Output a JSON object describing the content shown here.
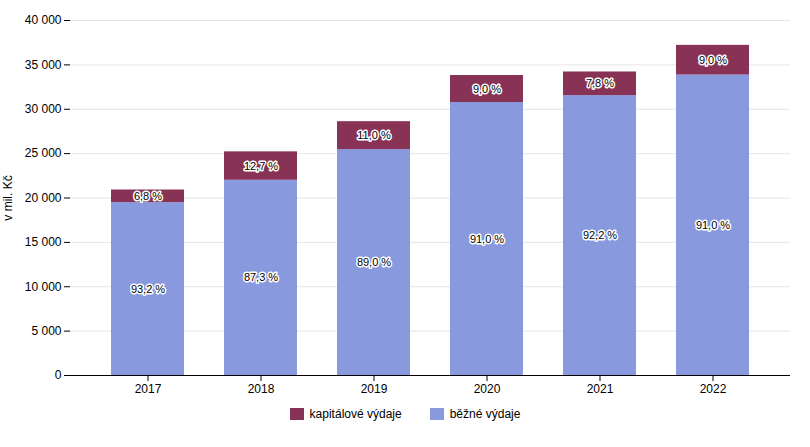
{
  "chart_data": {
    "type": "bar",
    "stacked": true,
    "ylabel": "v mil. Kč",
    "categories": [
      "2017",
      "2018",
      "2019",
      "2020",
      "2021",
      "2022"
    ],
    "series": [
      {
        "name": "běžné výdaje",
        "color": "#8899DD",
        "values": [
          19478.8,
          21999.6,
          25454,
          30758,
          31532.4,
          33852
        ],
        "labels": [
          "93,2 %",
          "87,3 %",
          "89,0 %",
          "91,0 %",
          "92,2 %",
          "91,0 %"
        ]
      },
      {
        "name": "kapitálové výdaje",
        "color": "#883355",
        "values": [
          1421.2,
          3200.4,
          3146,
          3042,
          2667.6,
          3348
        ],
        "labels": [
          "6,8 %",
          "12,7 %",
          "11,0 %",
          "9,0 %",
          "7,8 %",
          "9,0 %"
        ]
      }
    ],
    "ylim": [
      0,
      40000
    ],
    "yticks": [
      0,
      {
        "value": 5000,
        "label": "5 000"
      },
      {
        "value": 10000,
        "label": "10 000"
      },
      {
        "value": 15000,
        "label": "15 000"
      },
      {
        "value": 20000,
        "label": "20 000"
      },
      {
        "value": 25000,
        "label": "25 000"
      },
      {
        "value": 30000,
        "label": "30 000"
      },
      {
        "value": 35000,
        "label": "35 000"
      },
      {
        "value": 40000,
        "label": "40 000"
      }
    ],
    "grid": true,
    "legend": "bottom"
  }
}
